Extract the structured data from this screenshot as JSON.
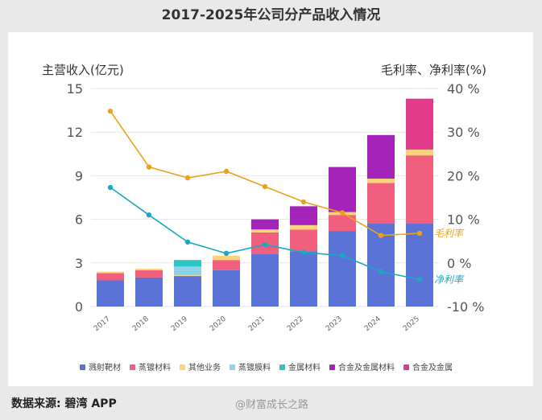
{
  "page": {
    "title": "2017-2025年公司分产品收入情况",
    "source": "数据来源: 碧湾 APP",
    "watermark": "@财富成长之路"
  },
  "chart_data": {
    "type": "bar",
    "stacked": true,
    "categories": [
      "2017",
      "2018",
      "2019",
      "2020",
      "2021",
      "2022",
      "2023",
      "2024",
      "2025"
    ],
    "ylabel": "主营收入(亿元)",
    "ylim": [
      0,
      15
    ],
    "yticks": [
      "0",
      "3",
      "6",
      "9",
      "12",
      "15"
    ],
    "y2label": "毛利率、净利率(%)",
    "y2lim": [
      -10,
      40
    ],
    "y2ticks": [
      "-10 %",
      "0 %",
      "10 %",
      "20 %",
      "30 %",
      "40 %"
    ],
    "grid": true,
    "legend_position": "bottom",
    "series": [
      {
        "name": "溅射靶材",
        "color": "#5b73d6",
        "values": [
          1.8,
          2.0,
          2.1,
          2.5,
          3.6,
          3.8,
          5.2,
          5.7,
          5.7
        ]
      },
      {
        "name": "蒸镀材料",
        "color": "#f0607e",
        "values": [
          0.5,
          0.5,
          0.0,
          0.7,
          1.5,
          1.5,
          1.1,
          2.8,
          4.7
        ]
      },
      {
        "name": "其他业务",
        "color": "#fbd37c",
        "values": [
          0.1,
          0.1,
          0.05,
          0.3,
          0.2,
          0.3,
          0.2,
          0.3,
          0.4
        ]
      },
      {
        "name": "蒸镀膜料",
        "color": "#8fd3ea",
        "values": [
          0,
          0,
          0.6,
          0,
          0,
          0,
          0,
          0,
          0
        ]
      },
      {
        "name": "金属材料",
        "color": "#2ec4c4",
        "values": [
          0,
          0,
          0.45,
          0,
          0,
          0,
          0,
          0,
          0
        ]
      },
      {
        "name": "合金及金属材料",
        "color": "#a423b8",
        "values": [
          0,
          0,
          0,
          0,
          0.7,
          1.3,
          3.1,
          3.0,
          0
        ]
      },
      {
        "name": "合金及金属",
        "color": "#e23a8a",
        "values": [
          0,
          0,
          0,
          0,
          0,
          0,
          0,
          0,
          3.5
        ]
      }
    ],
    "lines": [
      {
        "name": "毛利率",
        "color": "#e9a21c",
        "values": [
          34.8,
          22.0,
          19.5,
          21.0,
          17.5,
          14.0,
          11.5,
          6.3,
          6.8
        ]
      },
      {
        "name": "净利率",
        "color": "#18a9c4",
        "values": [
          17.3,
          11.0,
          4.8,
          2.2,
          4.2,
          2.4,
          1.7,
          -2.0,
          -3.8
        ]
      }
    ]
  }
}
